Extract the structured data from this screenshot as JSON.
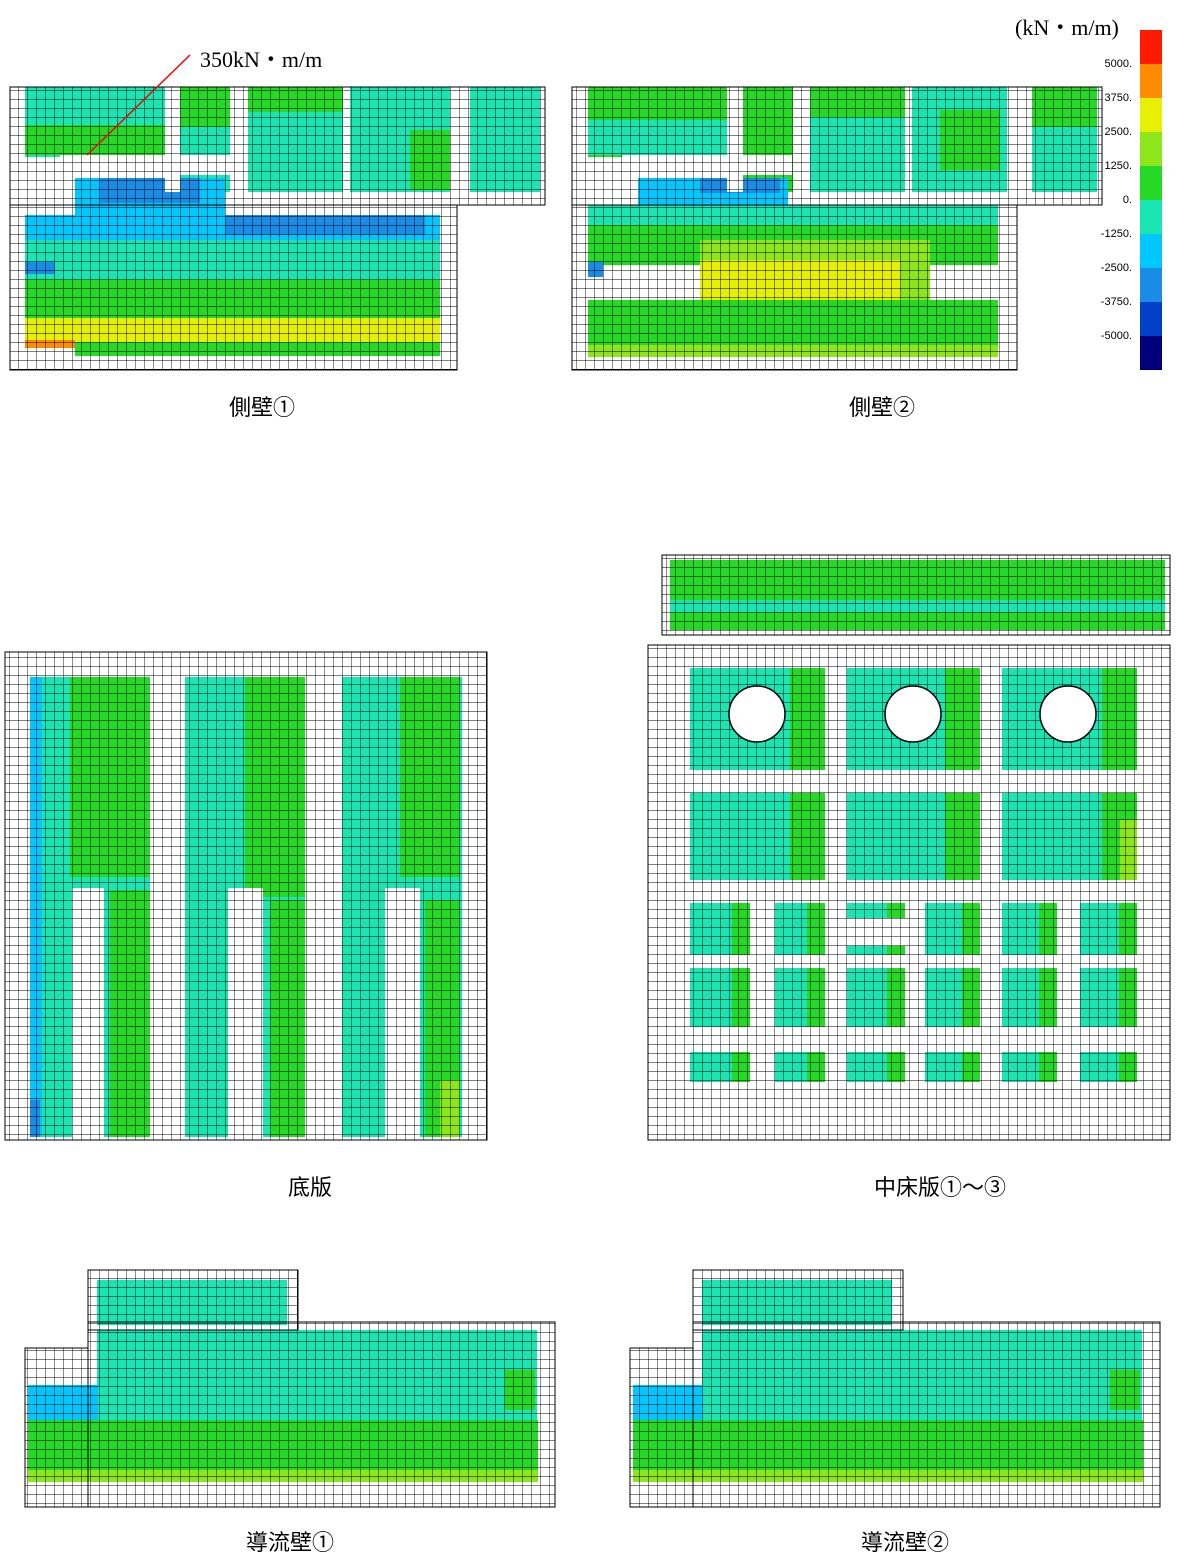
{
  "unit": "(kN・m/m)",
  "annotation": "350kN・m/m",
  "legend": {
    "labels": [
      "5000.",
      "3750.",
      "2500.",
      "1250.",
      "0.",
      "-1250.",
      "-2500.",
      "-3750.",
      "-5000."
    ],
    "colors": [
      "#ff1a00",
      "#ff8c00",
      "#e6f000",
      "#8ce61a",
      "#26d926",
      "#1ae6b3",
      "#00c8ff",
      "#1a8ce6",
      "#0040c8",
      "#00007a"
    ]
  },
  "panels": [
    "側壁①",
    "側壁②",
    "底版",
    "中床版①～③",
    "導流壁①",
    "導流壁②"
  ]
}
